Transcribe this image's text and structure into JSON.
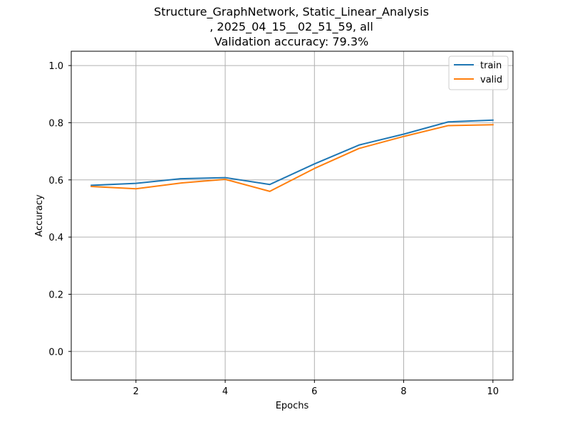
{
  "chart_data": {
    "type": "line",
    "title_lines": [
      "Structure_GraphNetwork, Static_Linear_Analysis",
      ", 2025_04_15__02_51_59, all",
      "Validation accuracy: 79.3%"
    ],
    "xlabel": "Epochs",
    "ylabel": "Accuracy",
    "xlim": [
      0.55,
      10.45
    ],
    "ylim": [
      -0.1,
      1.05
    ],
    "xticks": [
      2,
      4,
      6,
      8,
      10
    ],
    "xtick_labels": [
      "2",
      "4",
      "6",
      "8",
      "10"
    ],
    "yticks": [
      0.0,
      0.2,
      0.4,
      0.6,
      0.8,
      1.0
    ],
    "ytick_labels": [
      "0.0",
      "0.2",
      "0.4",
      "0.6",
      "0.8",
      "1.0"
    ],
    "grid": true,
    "legend_position": "top-right",
    "x": [
      1,
      2,
      3,
      4,
      5,
      6,
      7,
      8,
      9,
      10
    ],
    "series": [
      {
        "name": "train",
        "color": "#1f77b4",
        "values": [
          0.581,
          0.588,
          0.604,
          0.608,
          0.584,
          0.656,
          0.722,
          0.76,
          0.803,
          0.809
        ]
      },
      {
        "name": "valid",
        "color": "#ff7f0e",
        "values": [
          0.577,
          0.569,
          0.589,
          0.602,
          0.56,
          0.64,
          0.71,
          0.752,
          0.79,
          0.793
        ]
      }
    ]
  }
}
